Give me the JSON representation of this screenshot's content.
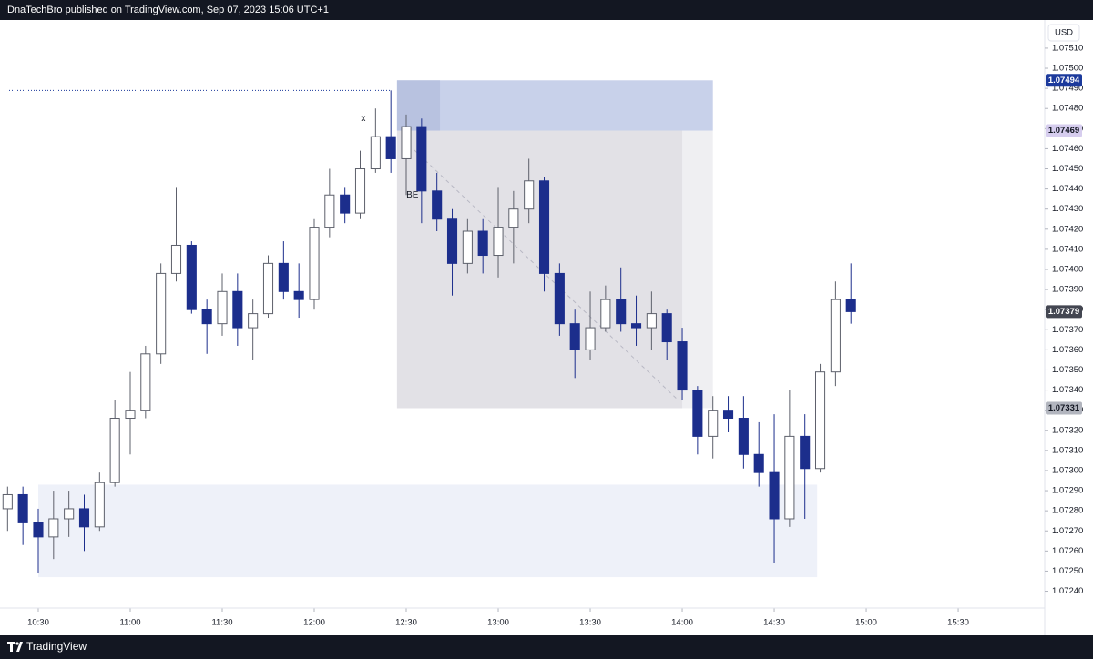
{
  "header": {
    "text": "DnaTechBro published on TradingView.com, Sep 07, 2023 15:06 UTC+1"
  },
  "footer": {
    "brand": "TradingView"
  },
  "chart_data": {
    "type": "candlestick",
    "currency": "USD",
    "x": [
      620,
      625,
      630,
      635,
      640,
      645,
      650,
      655,
      660,
      665,
      670,
      675,
      680,
      685,
      690,
      695,
      700,
      705,
      710,
      715,
      720,
      725,
      730,
      735,
      740,
      745,
      750,
      755,
      760,
      765,
      770,
      775,
      780,
      785,
      790,
      795,
      800,
      805,
      810,
      815,
      820,
      825,
      830,
      835,
      840,
      845,
      850,
      855,
      860,
      865,
      870,
      875,
      880,
      885,
      890,
      895
    ],
    "open": [
      1.07281,
      1.07288,
      1.07274,
      1.07267,
      1.07276,
      1.07281,
      1.07272,
      1.07294,
      1.07326,
      1.0733,
      1.07358,
      1.07398,
      1.07412,
      1.0738,
      1.07373,
      1.07389,
      1.07371,
      1.07378,
      1.07403,
      1.07389,
      1.07385,
      1.07421,
      1.07437,
      1.07428,
      1.0745,
      1.07466,
      1.07455,
      1.07471,
      1.07439,
      1.07425,
      1.07403,
      1.07419,
      1.07407,
      1.07421,
      1.0743,
      1.07444,
      1.07398,
      1.07373,
      1.0736,
      1.07371,
      1.07385,
      1.07373,
      1.07371,
      1.07378,
      1.07364,
      1.0734,
      1.07317,
      1.0733,
      1.07326,
      1.07308,
      1.07299,
      1.07276,
      1.07317,
      1.07301,
      1.07349,
      1.07385
    ],
    "high": [
      1.07292,
      1.07292,
      1.07281,
      1.0729,
      1.0729,
      1.07288,
      1.07299,
      1.07335,
      1.07349,
      1.07362,
      1.07403,
      1.07441,
      1.07414,
      1.07385,
      1.07398,
      1.07398,
      1.07385,
      1.07407,
      1.07414,
      1.07403,
      1.07425,
      1.0745,
      1.07441,
      1.07459,
      1.0748,
      1.07489,
      1.07477,
      1.07475,
      1.07448,
      1.0743,
      1.07425,
      1.07425,
      1.07441,
      1.07439,
      1.07455,
      1.07446,
      1.07403,
      1.0738,
      1.07389,
      1.07392,
      1.07401,
      1.07387,
      1.07389,
      1.0738,
      1.07371,
      1.07342,
      1.07337,
      1.07337,
      1.07337,
      1.07324,
      1.07328,
      1.0734,
      1.07328,
      1.07353,
      1.07394,
      1.07403
    ],
    "low": [
      1.0727,
      1.07263,
      1.07249,
      1.07256,
      1.07267,
      1.0726,
      1.0727,
      1.07292,
      1.07308,
      1.07326,
      1.07353,
      1.07394,
      1.07378,
      1.07358,
      1.07367,
      1.07362,
      1.07355,
      1.07376,
      1.07385,
      1.07376,
      1.0738,
      1.07416,
      1.07423,
      1.07425,
      1.07448,
      1.07448,
      1.07437,
      1.07423,
      1.07419,
      1.07387,
      1.07398,
      1.07398,
      1.07396,
      1.07403,
      1.07423,
      1.07389,
      1.07367,
      1.07346,
      1.07355,
      1.07369,
      1.07369,
      1.07362,
      1.0736,
      1.07355,
      1.07335,
      1.07308,
      1.07306,
      1.07319,
      1.07301,
      1.07292,
      1.07254,
      1.07272,
      1.07276,
      1.07299,
      1.07342,
      1.07373
    ],
    "close": [
      1.07288,
      1.07274,
      1.07267,
      1.07276,
      1.07281,
      1.07272,
      1.07294,
      1.07326,
      1.0733,
      1.07358,
      1.07398,
      1.07412,
      1.0738,
      1.07373,
      1.07389,
      1.07371,
      1.07378,
      1.07403,
      1.07389,
      1.07385,
      1.07421,
      1.07437,
      1.07428,
      1.0745,
      1.07466,
      1.07455,
      1.07471,
      1.07439,
      1.07425,
      1.07403,
      1.07419,
      1.07407,
      1.07421,
      1.0743,
      1.07444,
      1.07398,
      1.07373,
      1.0736,
      1.07371,
      1.07385,
      1.07373,
      1.07371,
      1.07378,
      1.07364,
      1.0734,
      1.07317,
      1.0733,
      1.07326,
      1.07308,
      1.07299,
      1.07276,
      1.07317,
      1.07301,
      1.07349,
      1.07385,
      1.07379
    ],
    "up_color": "#ffffff",
    "up_border": "#5d606b",
    "down_color": "#1c2e8c",
    "xlim": [
      620.5,
      958.2
    ],
    "xticks": [
      {
        "value": 630,
        "label": "10:30"
      },
      {
        "value": 660,
        "label": "11:00"
      },
      {
        "value": 690,
        "label": "11:30"
      },
      {
        "value": 720,
        "label": "12:00"
      },
      {
        "value": 750,
        "label": "12:30"
      },
      {
        "value": 780,
        "label": "13:00"
      },
      {
        "value": 810,
        "label": "13:30"
      },
      {
        "value": 840,
        "label": "14:00"
      },
      {
        "value": 870,
        "label": "14:30"
      },
      {
        "value": 900,
        "label": "15:00"
      },
      {
        "value": 930,
        "label": "15:30"
      }
    ],
    "ylim": [
      1.07233,
      1.07524
    ],
    "yticks": [
      {
        "value": 1.0724,
        "label": "1.07240"
      },
      {
        "value": 1.0725,
        "label": "1.07250"
      },
      {
        "value": 1.0726,
        "label": "1.07260"
      },
      {
        "value": 1.0727,
        "label": "1.07270"
      },
      {
        "value": 1.0728,
        "label": "1.07280"
      },
      {
        "value": 1.0729,
        "label": "1.07290"
      },
      {
        "value": 1.073,
        "label": "1.07300"
      },
      {
        "value": 1.0731,
        "label": "1.07310"
      },
      {
        "value": 1.0732,
        "label": "1.07320"
      },
      {
        "value": 1.0733,
        "label": "1.07330"
      },
      {
        "value": 1.0734,
        "label": "1.07340"
      },
      {
        "value": 1.0735,
        "label": "1.07350"
      },
      {
        "value": 1.0736,
        "label": "1.07360"
      },
      {
        "value": 1.0737,
        "label": "1.07370"
      },
      {
        "value": 1.0738,
        "label": "1.07380"
      },
      {
        "value": 1.0739,
        "label": "1.07390"
      },
      {
        "value": 1.074,
        "label": "1.07400"
      },
      {
        "value": 1.0741,
        "label": "1.07410"
      },
      {
        "value": 1.0742,
        "label": "1.07420"
      },
      {
        "value": 1.0743,
        "label": "1.07430"
      },
      {
        "value": 1.0744,
        "label": "1.07440"
      },
      {
        "value": 1.0745,
        "label": "1.07450"
      },
      {
        "value": 1.0746,
        "label": "1.07460"
      },
      {
        "value": 1.0747,
        "label": "1.07470"
      },
      {
        "value": 1.0748,
        "label": "1.07480"
      },
      {
        "value": 1.0749,
        "label": "1.07490"
      },
      {
        "value": 1.075,
        "label": "1.07500"
      },
      {
        "value": 1.0751,
        "label": "1.07510"
      }
    ],
    "zones": [
      {
        "top": 1.07469,
        "bottom": 1.07331,
        "start": 747,
        "end": 850,
        "color": "#efeff2"
      },
      {
        "top": 1.07469,
        "bottom": 1.07331,
        "start": 747,
        "end": 840,
        "color": "#e2e1e6"
      },
      {
        "top": 1.07494,
        "bottom": 1.07469,
        "start": 747,
        "end": 850,
        "color": "#c8d1ea"
      },
      {
        "top": 1.07494,
        "bottom": 1.07469,
        "start": 747,
        "end": 761,
        "color": "#b8c2e0"
      },
      {
        "top": 1.07293,
        "bottom": 1.07247,
        "start": 630,
        "end": 884,
        "color": "#eef1f9"
      }
    ],
    "price_labels": [
      {
        "value": 1.07494,
        "color": "#1c3a9c",
        "text_color": "#ffffff"
      },
      {
        "value": 1.07469,
        "color": "#d6cdee",
        "text_color": "#131722"
      },
      {
        "value": 1.07379,
        "color": "#434651",
        "text_color": "#ffffff"
      },
      {
        "value": 1.07331,
        "color": "#b2b5be",
        "text_color": "#131722"
      }
    ],
    "annotations": [
      {
        "text": "x",
        "price": 1.07475,
        "time": 736
      },
      {
        "text": "BE",
        "price": 1.07437,
        "time": 752
      }
    ]
  }
}
